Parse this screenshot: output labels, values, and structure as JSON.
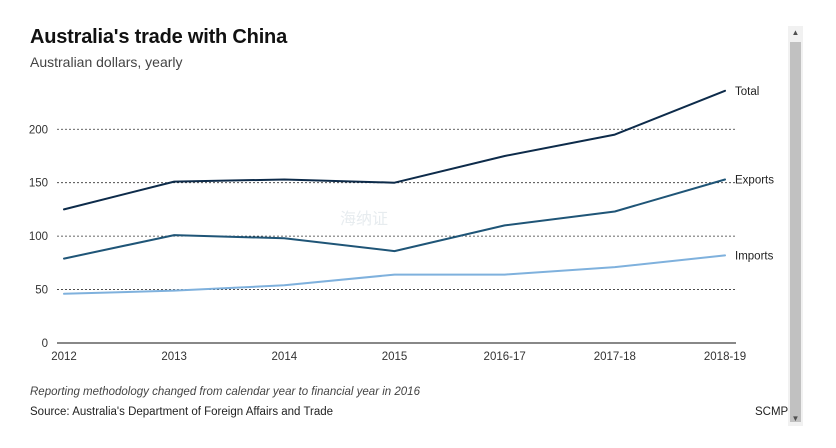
{
  "header": {
    "title": "Australia's trade with China",
    "subtitle": "Australian dollars, yearly"
  },
  "footer": {
    "note": "Reporting methodology changed from calendar year to financial year in 2016",
    "source": "Source: Australia's Department of Foreign Affairs and Trade",
    "brand": "SCMP"
  },
  "watermark": "海纳证",
  "scroll": {
    "up_icon": "▲",
    "down_icon": "▼"
  },
  "colors": {
    "total": "#0d2b4a",
    "exports": "#1f5577",
    "imports": "#7fb1dd",
    "grid": "#333333",
    "axis_text": "#333333"
  },
  "chart_data": {
    "type": "line",
    "title": "Australia's trade with China",
    "subtitle": "Australian dollars, yearly",
    "categories": [
      "2012",
      "2013",
      "2014",
      "2015",
      "2016-17",
      "2017-18",
      "2018-19"
    ],
    "ylim": [
      0,
      240
    ],
    "yticks": [
      0,
      50,
      100,
      150,
      200
    ],
    "grid": "dashed horizontal",
    "series": [
      {
        "name": "Total",
        "values": [
          125,
          151,
          153,
          150,
          175,
          195,
          236
        ]
      },
      {
        "name": "Exports",
        "values": [
          79,
          101,
          98,
          86,
          110,
          123,
          153
        ]
      },
      {
        "name": "Imports",
        "values": [
          46,
          49,
          54,
          64,
          64,
          71,
          82
        ]
      }
    ]
  }
}
